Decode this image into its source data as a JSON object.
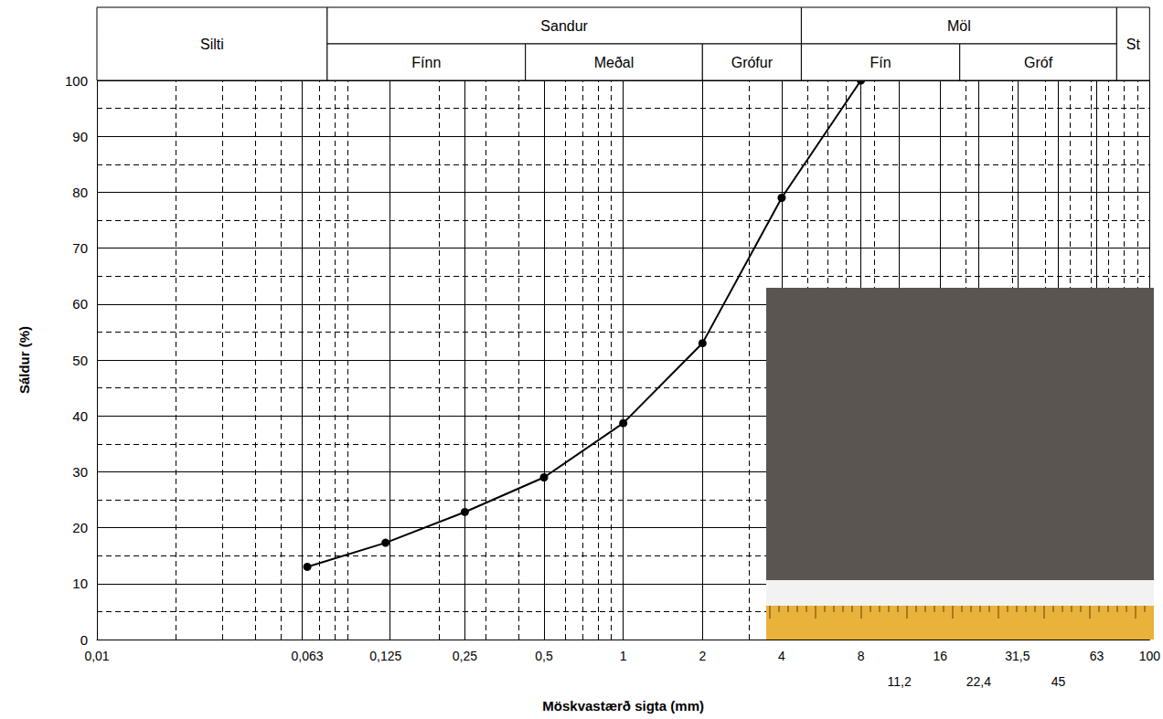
{
  "chart_data": {
    "type": "line",
    "x": [
      0.063,
      0.125,
      0.25,
      0.5,
      1,
      2,
      4,
      8
    ],
    "values": [
      13,
      17.3,
      22.8,
      29,
      38.7,
      53,
      79,
      100
    ],
    "color": "#000000",
    "marker": "circle",
    "line_style": "solid",
    "xlabel": "Möskvastærð sigta (mm)",
    "ylabel": "Sáldur (%)",
    "log": "x",
    "grid": true,
    "xlim": [
      0.01,
      100
    ],
    "xticks": [
      {
        "value": 0.01,
        "label": "0,01"
      },
      {
        "value": 0.063,
        "label": "0,063"
      },
      {
        "value": 0.125,
        "label": "0,125"
      },
      {
        "value": 0.25,
        "label": "0,25"
      },
      {
        "value": 0.5,
        "label": "0,5"
      },
      1,
      2,
      4,
      8,
      {
        "value": 11.2,
        "label": "11,2"
      },
      16,
      {
        "value": 22.4,
        "label": "22,4"
      },
      {
        "value": 31.5,
        "label": "31,5"
      },
      45,
      63,
      100
    ],
    "ylim": [
      0,
      100
    ],
    "yticks": [
      0,
      10,
      20,
      30,
      40,
      50,
      60,
      70,
      80,
      90,
      100
    ],
    "size_classes": [
      {
        "name": "Silti",
        "from": 0.01,
        "to": 0.075
      },
      {
        "name": "Sandur",
        "from": 0.075,
        "to": 4.75,
        "parts": [
          {
            "name": "Fínn",
            "from": 0.075,
            "to": 0.425
          },
          {
            "name": "Meðal",
            "from": 0.425,
            "to": 2
          },
          {
            "name": "Grófur",
            "from": 2,
            "to": 4.75
          }
        ]
      },
      {
        "name": "Möl",
        "from": 4.75,
        "to": 75,
        "parts": [
          {
            "name": "Fín",
            "from": 4.75,
            "to": 19
          },
          {
            "name": "Gróf",
            "from": 19,
            "to": 75
          }
        ]
      },
      {
        "name": "St",
        "from": 75,
        "to": 100
      }
    ]
  }
}
